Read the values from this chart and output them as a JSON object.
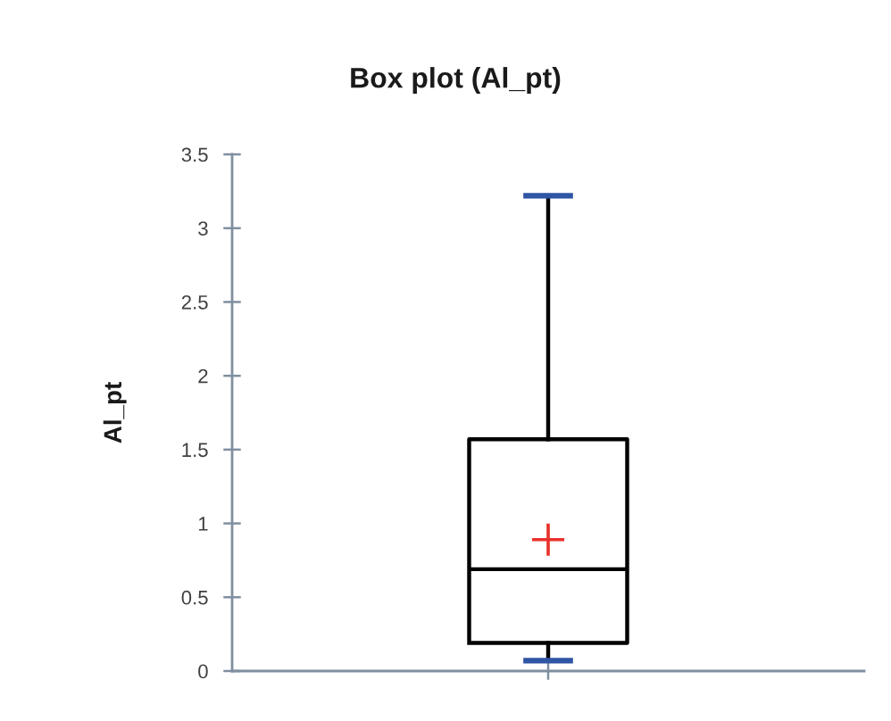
{
  "chart_data": {
    "type": "box",
    "title": "Box plot (Al_pt)",
    "ylabel": "Al_pt",
    "categories": [
      null
    ],
    "boxes": [
      {
        "low": 0.07,
        "q1": 0.19,
        "median": 0.69,
        "q3": 1.57,
        "high": 3.22,
        "mean": 0.89
      }
    ],
    "color": "#000000",
    "ylim": [
      0,
      3.5
    ],
    "yticks": [
      0,
      0.5,
      1,
      1.5,
      2,
      2.5,
      3,
      3.5
    ],
    "tick_labels": "y"
  }
}
